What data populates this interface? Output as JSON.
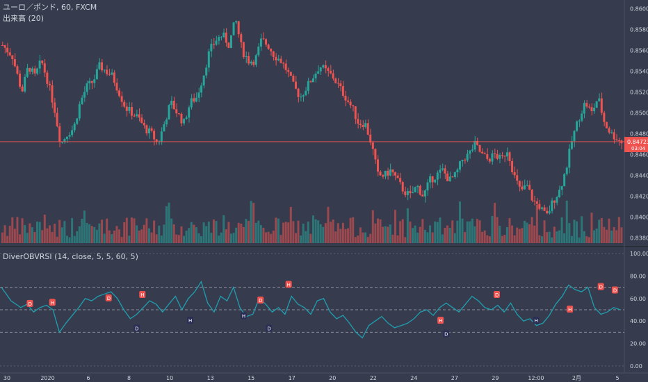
{
  "header": {
    "symbol": "ユーロ／ポンド, 60, FXCM",
    "volume": "出来高 (20)",
    "indicator": "DiverOBVRSI (14, close, 5, 5, 60, 5)"
  },
  "price_axis": {
    "ticks": [
      "0.86000",
      "0.85800",
      "0.85600",
      "0.85400",
      "0.85200",
      "0.85000",
      "0.84800",
      "0.84600",
      "0.84400",
      "0.84200",
      "0.84000",
      "0.83800"
    ],
    "current_price": "0.84723",
    "countdown": "03:04"
  },
  "indicator_axis": {
    "ticks": [
      "100.00",
      "80.00",
      "60.00",
      "40.00",
      "20.00",
      "0.00"
    ]
  },
  "time_axis": {
    "ticks": [
      "30",
      "2020",
      "6",
      "8",
      "10",
      "13",
      "15",
      "17",
      "20",
      "22",
      "24",
      "27",
      "29",
      "12:00",
      "2月",
      "5"
    ]
  },
  "colors": {
    "background": "#363c4e",
    "bull": "#26a69a",
    "bear": "#ef5350",
    "oscillator": "#1f9fb0",
    "price_line": "#ef5350",
    "divergence_label": "#ef5350",
    "hidden_divergence_label": "#2a2e55"
  },
  "chart_data": [
    {
      "type": "candlestick",
      "title": "ユーロ／ポンド, 60, FXCM",
      "ylim": [
        0.8375,
        0.8605
      ],
      "last_price": 0.84723,
      "close_path": [
        [
          0,
          0.8565
        ],
        [
          3,
          0.8555
        ],
        [
          6,
          0.852
        ],
        [
          8,
          0.8545
        ],
        [
          10,
          0.8535
        ],
        [
          12,
          0.855
        ],
        [
          14,
          0.853
        ],
        [
          16,
          0.8505
        ],
        [
          18,
          0.847
        ],
        [
          20,
          0.848
        ],
        [
          22,
          0.8485
        ],
        [
          24,
          0.851
        ],
        [
          26,
          0.8525
        ],
        [
          28,
          0.853
        ],
        [
          30,
          0.8545
        ],
        [
          32,
          0.854
        ],
        [
          34,
          0.8535
        ],
        [
          36,
          0.852
        ],
        [
          38,
          0.8505
        ],
        [
          40,
          0.85
        ],
        [
          42,
          0.8495
        ],
        [
          44,
          0.8485
        ],
        [
          46,
          0.848
        ],
        [
          48,
          0.847
        ],
        [
          50,
          0.849
        ],
        [
          52,
          0.851
        ],
        [
          54,
          0.85
        ],
        [
          56,
          0.849
        ],
        [
          58,
          0.851
        ],
        [
          60,
          0.8515
        ],
        [
          62,
          0.8535
        ],
        [
          64,
          0.856
        ],
        [
          66,
          0.857
        ],
        [
          68,
          0.8575
        ],
        [
          70,
          0.8565
        ],
        [
          72,
          0.859
        ],
        [
          74,
          0.856
        ],
        [
          76,
          0.855
        ],
        [
          78,
          0.855
        ],
        [
          80,
          0.857
        ],
        [
          82,
          0.8565
        ],
        [
          84,
          0.8555
        ],
        [
          86,
          0.855
        ],
        [
          88,
          0.854
        ],
        [
          90,
          0.8525
        ],
        [
          92,
          0.8515
        ],
        [
          94,
          0.8525
        ],
        [
          96,
          0.8535
        ],
        [
          98,
          0.8545
        ],
        [
          100,
          0.854
        ],
        [
          102,
          0.8535
        ],
        [
          104,
          0.8525
        ],
        [
          106,
          0.8515
        ],
        [
          108,
          0.8505
        ],
        [
          110,
          0.849
        ],
        [
          112,
          0.849
        ],
        [
          114,
          0.847
        ],
        [
          116,
          0.844
        ],
        [
          118,
          0.844
        ],
        [
          120,
          0.8445
        ],
        [
          122,
          0.8435
        ],
        [
          124,
          0.8425
        ],
        [
          126,
          0.842
        ],
        [
          128,
          0.843
        ],
        [
          130,
          0.842
        ],
        [
          132,
          0.8435
        ],
        [
          134,
          0.844
        ],
        [
          136,
          0.8445
        ],
        [
          138,
          0.8435
        ],
        [
          140,
          0.844
        ],
        [
          142,
          0.8455
        ],
        [
          144,
          0.846
        ],
        [
          146,
          0.847
        ],
        [
          148,
          0.846
        ],
        [
          150,
          0.8455
        ],
        [
          152,
          0.846
        ],
        [
          154,
          0.8455
        ],
        [
          156,
          0.8465
        ],
        [
          158,
          0.844
        ],
        [
          160,
          0.8425
        ],
        [
          162,
          0.843
        ],
        [
          164,
          0.8415
        ],
        [
          166,
          0.841
        ],
        [
          168,
          0.84
        ],
        [
          170,
          0.8415
        ],
        [
          172,
          0.8425
        ],
        [
          174,
          0.8445
        ],
        [
          176,
          0.8475
        ],
        [
          178,
          0.8495
        ],
        [
          180,
          0.851
        ],
        [
          182,
          0.85
        ],
        [
          184,
          0.8515
        ],
        [
          186,
          0.849
        ],
        [
          188,
          0.848
        ],
        [
          190,
          0.8475
        ],
        [
          192,
          0.847
        ]
      ],
      "volume_ylim": [
        0,
        100
      ]
    },
    {
      "type": "line",
      "title": "DiverOBVRSI (14, close, 5, 5, 60, 5)",
      "ylim": [
        -5,
        105
      ],
      "reference_lines": [
        70,
        50,
        30
      ],
      "x": [
        0,
        3,
        6,
        8,
        10,
        12,
        14,
        16,
        18,
        20,
        22,
        24,
        26,
        28,
        30,
        32,
        34,
        36,
        38,
        40,
        42,
        44,
        46,
        48,
        50,
        52,
        54,
        56,
        58,
        60,
        62,
        64,
        66,
        68,
        70,
        72,
        74,
        76,
        78,
        80,
        82,
        84,
        86,
        88,
        90,
        92,
        94,
        96,
        98,
        100,
        102,
        104,
        106,
        108,
        110,
        112,
        114,
        116,
        118,
        120,
        122,
        124,
        126,
        128,
        130,
        132,
        134,
        136,
        138,
        140,
        142,
        144,
        146,
        148,
        150,
        152,
        154,
        156,
        158,
        160,
        162,
        164,
        166,
        168,
        170,
        172,
        174,
        176,
        178,
        180,
        182,
        184,
        186,
        188,
        190,
        192
      ],
      "values": [
        70,
        58,
        52,
        55,
        48,
        52,
        54,
        50,
        30,
        38,
        45,
        52,
        60,
        58,
        62,
        64,
        66,
        60,
        50,
        42,
        46,
        52,
        58,
        55,
        48,
        55,
        62,
        50,
        60,
        66,
        75,
        56,
        48,
        62,
        58,
        70,
        52,
        44,
        46,
        60,
        55,
        48,
        52,
        46,
        62,
        55,
        52,
        46,
        58,
        60,
        48,
        42,
        45,
        38,
        30,
        25,
        36,
        40,
        44,
        38,
        34,
        36,
        38,
        42,
        48,
        50,
        45,
        52,
        56,
        52,
        48,
        55,
        62,
        58,
        52,
        50,
        54,
        48,
        56,
        46,
        40,
        42,
        36,
        38,
        45,
        55,
        62,
        72,
        68,
        66,
        70,
        52,
        46,
        48,
        52,
        50
      ],
      "labels": [
        {
          "x": 10,
          "y": 55,
          "text": "D",
          "kind": "divergence"
        },
        {
          "x": 18,
          "y": 56,
          "text": "H",
          "kind": "divergence"
        },
        {
          "x": 38,
          "y": 60,
          "text": "D",
          "kind": "divergence"
        },
        {
          "x": 48,
          "y": 33,
          "text": "D",
          "kind": "hidden"
        },
        {
          "x": 50,
          "y": 63,
          "text": "H",
          "kind": "divergence"
        },
        {
          "x": 67,
          "y": 40,
          "text": "H",
          "kind": "hidden"
        },
        {
          "x": 86,
          "y": 44,
          "text": "H",
          "kind": "hidden"
        },
        {
          "x": 92,
          "y": 58,
          "text": "D",
          "kind": "divergence"
        },
        {
          "x": 95,
          "y": 33,
          "text": "D",
          "kind": "hidden"
        },
        {
          "x": 102,
          "y": 72,
          "text": "H",
          "kind": "divergence"
        },
        {
          "x": 156,
          "y": 40,
          "text": "H",
          "kind": "divergence"
        },
        {
          "x": 158,
          "y": 28,
          "text": "D",
          "kind": "hidden"
        },
        {
          "x": 176,
          "y": 63,
          "text": "D",
          "kind": "divergence"
        },
        {
          "x": 190,
          "y": 40,
          "text": "H",
          "kind": "hidden"
        },
        {
          "x": 202,
          "y": 50,
          "text": "H",
          "kind": "divergence"
        },
        {
          "x": 213,
          "y": 70,
          "text": "D",
          "kind": "divergence"
        },
        {
          "x": 218,
          "y": 67,
          "text": "D",
          "kind": "divergence"
        }
      ]
    }
  ]
}
